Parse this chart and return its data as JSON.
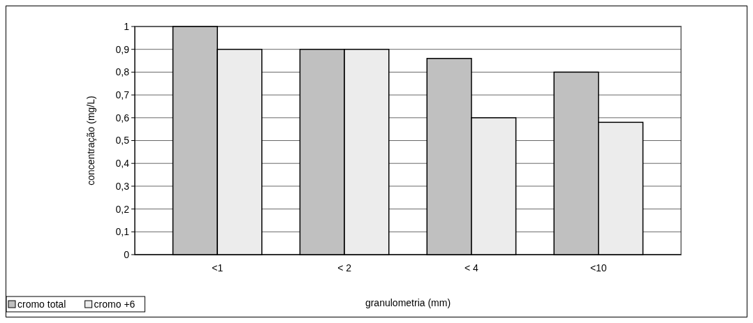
{
  "chart_data": {
    "type": "bar",
    "xlabel": "granulometria (mm)",
    "ylabel": "concentração (mg/L)",
    "categories": [
      "<1",
      "< 2",
      "< 4",
      "<10"
    ],
    "series": [
      {
        "name": "cromo total",
        "color": "#c0c0c0",
        "values": [
          1.0,
          0.9,
          0.86,
          0.8
        ]
      },
      {
        "name": "cromo +6",
        "color": "#ececec",
        "values": [
          0.9,
          0.9,
          0.6,
          0.58
        ]
      }
    ],
    "ylim": [
      0,
      1
    ],
    "yticks": [
      0,
      {
        "value": 0.1,
        "label": "0,1"
      },
      {
        "value": 0.2,
        "label": "0,2"
      },
      {
        "value": 0.3,
        "label": "0,3"
      },
      {
        "value": 0.4,
        "label": "0,4"
      },
      {
        "value": 0.5,
        "label": "0,5"
      },
      {
        "value": 0.6,
        "label": "0,6"
      },
      {
        "value": 0.7,
        "label": "0,7"
      },
      {
        "value": 0.8,
        "label": "0,8"
      },
      {
        "value": 0.9,
        "label": "0,9"
      },
      1
    ],
    "grid": "y",
    "legend": "bottom left"
  }
}
